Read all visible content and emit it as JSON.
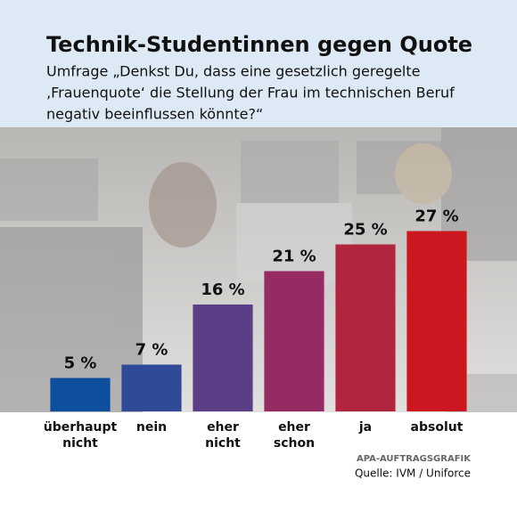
{
  "chart_data": {
    "type": "bar",
    "title": "Technik-Studentinnen gegen Quote",
    "subtitle": [
      "Umfrage „Denkst Du, dass eine gesetzlich geregelte",
      "‚Frauenquote‘ die Stellung der Frau im technischen Beruf",
      "negativ beeinflussen könnte?“"
    ],
    "categories": [
      "überhaupt nicht",
      "nein",
      "eher nicht",
      "eher schon",
      "ja",
      "absolut"
    ],
    "values": [
      5,
      7,
      16,
      21,
      25,
      27
    ],
    "value_labels": [
      "5 %",
      "7 %",
      "16 %",
      "21 %",
      "25 %",
      "27 %"
    ],
    "colors": [
      "#0d4f9c",
      "#2f4b98",
      "#5a3f86",
      "#962a62",
      "#b2253f",
      "#cc1620"
    ],
    "ylim": [
      0,
      30
    ],
    "credit": "APA-AUFTRAGSGRAFIK",
    "source": "Quelle: IVM / Uniforce"
  }
}
